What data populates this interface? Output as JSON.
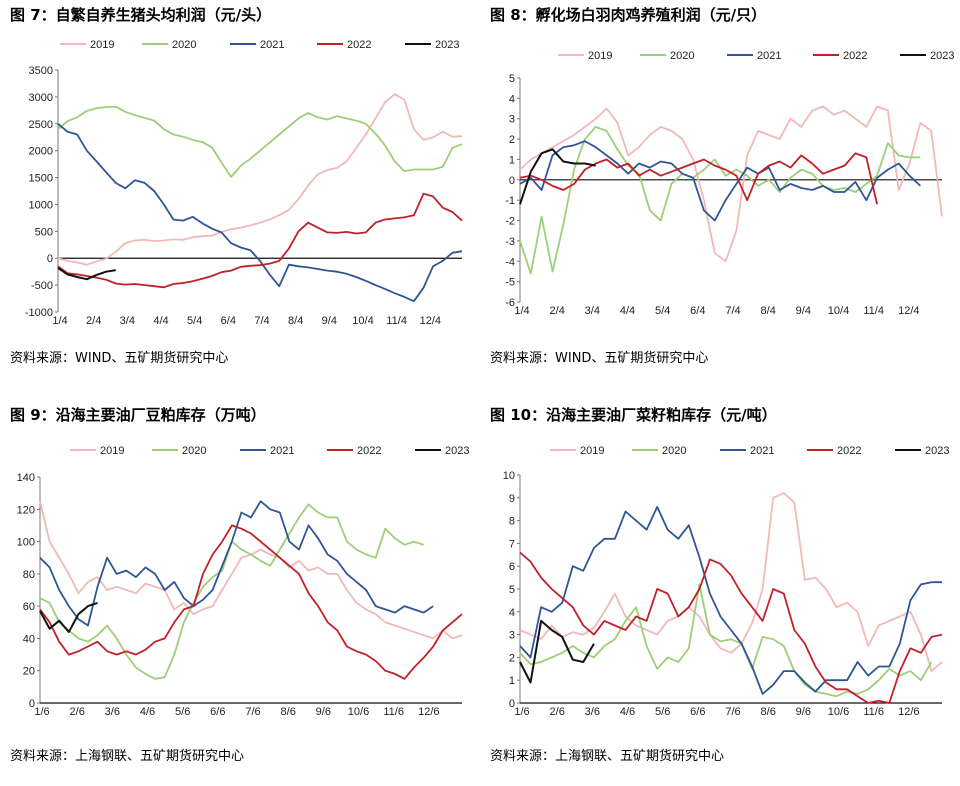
{
  "footnote": "资料来源：WIND、五矿期货研究中心",
  "colors": {
    "2019": "#f2b8b8",
    "2020": "#9bcf78",
    "2021": "#2f5597",
    "2022": "#c0202a",
    "2023": "#111111"
  },
  "charts": [
    {
      "title": "图 7：自繁自养生猪头均利润（元/头）",
      "source": "资料来源：WIND、五矿期货研究中心",
      "chart_data": {
        "type": "line",
        "title": "图 7：自繁自养生猪头均利润（元/头）",
        "ylim": [
          -1000,
          3500
        ],
        "yticks": [
          -1000,
          -500,
          0,
          500,
          1000,
          1500,
          2000,
          2500,
          3000,
          3500
        ],
        "xticks": [
          "1/4",
          "2/4",
          "3/4",
          "4/4",
          "5/4",
          "6/4",
          "7/4",
          "8/4",
          "9/4",
          "10/4",
          "11/4",
          "12/4"
        ],
        "legend": [
          "2019",
          "2020",
          "2021",
          "2022",
          "2023"
        ],
        "legend_position": "top",
        "series": [
          {
            "name": "2019",
            "values": [
              0,
              -50,
              -80,
              -120,
              -60,
              -10,
              120,
              280,
              330,
              340,
              320,
              330,
              350,
              340,
              390,
              410,
              420,
              490,
              540,
              570,
              610,
              660,
              720,
              800,
              900,
              1100,
              1350,
              1560,
              1640,
              1680,
              1800,
              2050,
              2300,
              2600,
              2900,
              3050,
              2950,
              2400,
              2200,
              2250,
              2350,
              2260,
              2270
            ]
          },
          {
            "name": "2020",
            "values": [
              2400,
              2550,
              2620,
              2740,
              2790,
              2810,
              2820,
              2720,
              2660,
              2610,
              2560,
              2400,
              2300,
              2260,
              2200,
              2160,
              2060,
              1780,
              1510,
              1720,
              1850,
              2000,
              2150,
              2300,
              2450,
              2600,
              2700,
              2620,
              2580,
              2640,
              2600,
              2560,
              2500,
              2320,
              2100,
              1800,
              1620,
              1650,
              1650,
              1650,
              1700,
              2050,
              2120
            ]
          },
          {
            "name": "2021",
            "values": [
              2500,
              2350,
              2300,
              2000,
              1800,
              1600,
              1400,
              1300,
              1450,
              1400,
              1250,
              1000,
              720,
              700,
              770,
              650,
              550,
              480,
              280,
              200,
              150,
              -50,
              -300,
              -520,
              -120,
              -150,
              -170,
              -200,
              -230,
              -250,
              -290,
              -350,
              -420,
              -500,
              -570,
              -650,
              -720,
              -800,
              -550,
              -150,
              -50,
              100,
              130
            ]
          },
          {
            "name": "2022",
            "values": [
              -150,
              -280,
              -300,
              -330,
              -360,
              -400,
              -470,
              -490,
              -480,
              -500,
              -520,
              -540,
              -480,
              -460,
              -430,
              -380,
              -330,
              -260,
              -230,
              -160,
              -140,
              -130,
              -100,
              -50,
              180,
              500,
              660,
              570,
              480,
              470,
              490,
              460,
              480,
              660,
              720,
              740,
              760,
              800,
              1200,
              1150,
              940,
              860,
              700
            ]
          },
          {
            "name": "2023",
            "values": [
              -180,
              -300,
              -350,
              -390,
              -310,
              -250,
              -220
            ]
          }
        ]
      }
    },
    {
      "title": "图 8：孵化场白羽肉鸡养殖利润（元/只）",
      "source": "资料来源：WIND、五矿期货研究中心",
      "chart_data": {
        "type": "line",
        "title": "图 8：孵化场白羽肉鸡养殖利润（元/只）",
        "ylim": [
          -6,
          5
        ],
        "yticks": [
          -6,
          -5,
          -4,
          -3,
          -2,
          -1,
          0,
          1,
          2,
          3,
          4,
          5
        ],
        "xticks": [
          "1/4",
          "2/4",
          "3/4",
          "4/4",
          "5/4",
          "6/4",
          "7/4",
          "8/4",
          "9/4",
          "10/4",
          "11/4",
          "12/4"
        ],
        "legend": [
          "2019",
          "2020",
          "2021",
          "2022",
          "2023"
        ],
        "legend_position": "top",
        "series": [
          {
            "name": "2019",
            "values": [
              0.5,
              1.0,
              1.3,
              1.6,
              1.9,
              2.2,
              2.6,
              3.0,
              3.5,
              2.8,
              1.2,
              1.6,
              2.2,
              2.6,
              2.4,
              2.0,
              1.0,
              -1.0,
              -3.6,
              -4.0,
              -2.5,
              1.2,
              2.4,
              2.2,
              2.0,
              3.0,
              2.6,
              3.4,
              3.6,
              3.2,
              3.4,
              3.0,
              2.6,
              3.6,
              3.4,
              -0.5,
              0.8,
              2.8,
              2.4,
              -1.8
            ]
          },
          {
            "name": "2020",
            "values": [
              -3.0,
              -4.6,
              -1.8,
              -4.5,
              -2.2,
              0.5,
              2.0,
              2.6,
              2.4,
              1.5,
              0.7,
              0.3,
              -1.5,
              -2.0,
              -0.2,
              0.3,
              0.1,
              0.5,
              1.0,
              0.2,
              0.5,
              0.2,
              -0.3,
              0.0,
              -0.6,
              0.1,
              0.5,
              0.3,
              -0.3,
              -0.5,
              -0.4,
              -0.6,
              -0.2,
              0.2,
              1.8,
              1.2,
              1.1,
              1.1
            ]
          },
          {
            "name": "2021",
            "values": [
              -0.2,
              0.1,
              -0.5,
              1.2,
              1.6,
              1.7,
              1.9,
              1.6,
              1.2,
              0.8,
              0.3,
              0.8,
              0.6,
              0.9,
              0.8,
              0.3,
              0.1,
              -1.5,
              -2.0,
              -1.0,
              -0.2,
              0.6,
              0.3,
              0.6,
              -0.5,
              -0.2,
              -0.4,
              -0.5,
              -0.3,
              -0.6,
              -0.6,
              -0.1,
              -1.0,
              0.1,
              0.5,
              0.8,
              0.2,
              -0.3
            ]
          },
          {
            "name": "2022",
            "values": [
              0.1,
              0.2,
              0.0,
              -0.3,
              -0.5,
              -0.2,
              0.5,
              0.8,
              1.0,
              0.6,
              0.8,
              0.2,
              0.5,
              0.2,
              0.4,
              0.6,
              0.8,
              1.0,
              0.7,
              0.5,
              0.2,
              -1.0,
              0.3,
              0.7,
              0.9,
              0.6,
              1.2,
              0.8,
              0.3,
              0.5,
              0.7,
              1.3,
              1.1,
              -1.2
            ]
          },
          {
            "name": "2023",
            "values": [
              -1.2,
              0.4,
              1.3,
              1.5,
              0.9,
              0.8,
              0.8,
              0.7
            ]
          }
        ]
      }
    },
    {
      "title": "图 9：沿海主要油厂豆粕库存（万吨）",
      "source": "资料来源：上海钢联、五矿期货研究中心",
      "chart_data": {
        "type": "line",
        "title": "图 9：沿海主要油厂豆粕库存（万吨）",
        "ylim": [
          0,
          140
        ],
        "yticks": [
          0,
          20,
          40,
          60,
          80,
          100,
          120,
          140
        ],
        "xticks": [
          "1/6",
          "2/6",
          "3/6",
          "4/6",
          "5/6",
          "6/6",
          "7/6",
          "8/6",
          "9/6",
          "10/6",
          "11/6",
          "12/6"
        ],
        "legend": [
          "2019",
          "2020",
          "2021",
          "2022",
          "2023"
        ],
        "legend_position": "top",
        "series": [
          {
            "name": "2019",
            "values": [
              125,
              100,
              90,
              80,
              68,
              75,
              78,
              70,
              72,
              70,
              68,
              74,
              72,
              70,
              58,
              62,
              55,
              58,
              60,
              70,
              80,
              90,
              92,
              95,
              92,
              90,
              84,
              88,
              82,
              84,
              80,
              80,
              70,
              62,
              58,
              55,
              50,
              48,
              46,
              44,
              42,
              40,
              45,
              40,
              42
            ]
          },
          {
            "name": "2020",
            "values": [
              65,
              62,
              50,
              45,
              40,
              38,
              42,
              48,
              40,
              30,
              22,
              18,
              15,
              16,
              30,
              50,
              62,
              72,
              78,
              82,
              100,
              95,
              92,
              88,
              85,
              95,
              105,
              115,
              123,
              118,
              115,
              115,
              100,
              95,
              92,
              90,
              108,
              102,
              98,
              100,
              98
            ]
          },
          {
            "name": "2021",
            "values": [
              90,
              84,
              70,
              60,
              52,
              48,
              72,
              90,
              80,
              82,
              78,
              84,
              80,
              70,
              75,
              65,
              60,
              64,
              70,
              85,
              100,
              118,
              115,
              125,
              120,
              118,
              100,
              95,
              110,
              102,
              92,
              88,
              80,
              75,
              70,
              60,
              58,
              56,
              60,
              58,
              56,
              60
            ]
          },
          {
            "name": "2022",
            "values": [
              58,
              50,
              38,
              30,
              32,
              35,
              38,
              32,
              30,
              32,
              30,
              33,
              38,
              40,
              50,
              58,
              60,
              80,
              92,
              100,
              110,
              108,
              105,
              100,
              95,
              90,
              85,
              80,
              68,
              60,
              50,
              45,
              35,
              32,
              30,
              26,
              20,
              18,
              15,
              22,
              28,
              35,
              45,
              50,
              55
            ]
          },
          {
            "name": "2023",
            "values": [
              57,
              46,
              51,
              44,
              55,
              60,
              62
            ]
          }
        ]
      }
    },
    {
      "title": "图 10：沿海主要油厂菜籽粕库存（元/吨）",
      "source": "资料来源：上海钢联、五矿期货研究中心",
      "chart_data": {
        "type": "line",
        "title": "图 10：沿海主要油厂菜籽粕库存（元/吨）",
        "ylim": [
          0,
          10
        ],
        "yticks": [
          0,
          1,
          2,
          3,
          4,
          5,
          6,
          7,
          8,
          9,
          10
        ],
        "xticks": [
          "1/6",
          "2/6",
          "3/6",
          "4/6",
          "5/6",
          "6/6",
          "7/6",
          "8/6",
          "9/6",
          "10/6",
          "11/6",
          "12/6"
        ],
        "legend": [
          "2019",
          "2020",
          "2021",
          "2022",
          "2023"
        ],
        "legend_position": "top",
        "series": [
          {
            "name": "2019",
            "values": [
              3.2,
              3.0,
              2.8,
              3.4,
              2.9,
              3.1,
              3.0,
              3.3,
              4.0,
              4.8,
              3.8,
              3.4,
              3.2,
              3.0,
              3.6,
              3.8,
              4.2,
              3.8,
              3.0,
              2.4,
              2.2,
              2.6,
              3.5,
              5.0,
              9.0,
              9.2,
              8.8,
              5.4,
              5.5,
              5.0,
              4.2,
              4.4,
              4.0,
              2.5,
              3.4,
              3.6,
              3.8,
              4.0,
              3.0,
              1.4,
              1.8
            ]
          },
          {
            "name": "2020",
            "values": [
              2.2,
              1.7,
              1.8,
              2.0,
              2.2,
              2.5,
              2.2,
              2.0,
              2.5,
              2.8,
              3.6,
              4.2,
              2.5,
              1.5,
              2.0,
              1.8,
              2.4,
              5.2,
              3.0,
              2.7,
              2.8,
              2.6,
              1.5,
              2.9,
              2.8,
              2.5,
              1.4,
              0.8,
              0.5,
              0.4,
              0.3,
              0.5,
              0.4,
              0.6,
              1.0,
              1.5,
              1.2,
              1.4,
              1.0,
              1.8
            ]
          },
          {
            "name": "2021",
            "values": [
              2.5,
              2.0,
              4.2,
              4.0,
              4.4,
              6.0,
              5.8,
              6.8,
              7.2,
              7.2,
              8.4,
              8.0,
              7.6,
              8.6,
              7.6,
              7.2,
              7.8,
              6.4,
              4.8,
              3.8,
              3.2,
              2.6,
              1.6,
              0.4,
              0.8,
              1.4,
              1.4,
              0.9,
              0.5,
              1.0,
              1.0,
              1.0,
              1.8,
              1.2,
              1.6,
              1.6,
              2.6,
              4.5,
              5.2,
              5.3,
              5.3
            ]
          },
          {
            "name": "2022",
            "values": [
              6.6,
              6.2,
              5.5,
              5.0,
              4.6,
              4.2,
              3.4,
              3.0,
              3.6,
              3.4,
              3.2,
              3.8,
              3.6,
              5.0,
              4.8,
              3.8,
              4.2,
              5.0,
              6.3,
              6.1,
              5.6,
              4.8,
              4.2,
              3.6,
              5.0,
              4.8,
              3.2,
              2.6,
              1.6,
              0.9,
              0.6,
              0.6,
              0.3,
              0.0,
              0.1,
              0.0,
              1.4,
              2.4,
              2.2,
              2.9,
              3.0
            ]
          },
          {
            "name": "2023",
            "values": [
              1.8,
              0.9,
              3.6,
              3.2,
              2.9,
              1.9,
              1.8,
              2.6
            ]
          }
        ]
      }
    }
  ]
}
